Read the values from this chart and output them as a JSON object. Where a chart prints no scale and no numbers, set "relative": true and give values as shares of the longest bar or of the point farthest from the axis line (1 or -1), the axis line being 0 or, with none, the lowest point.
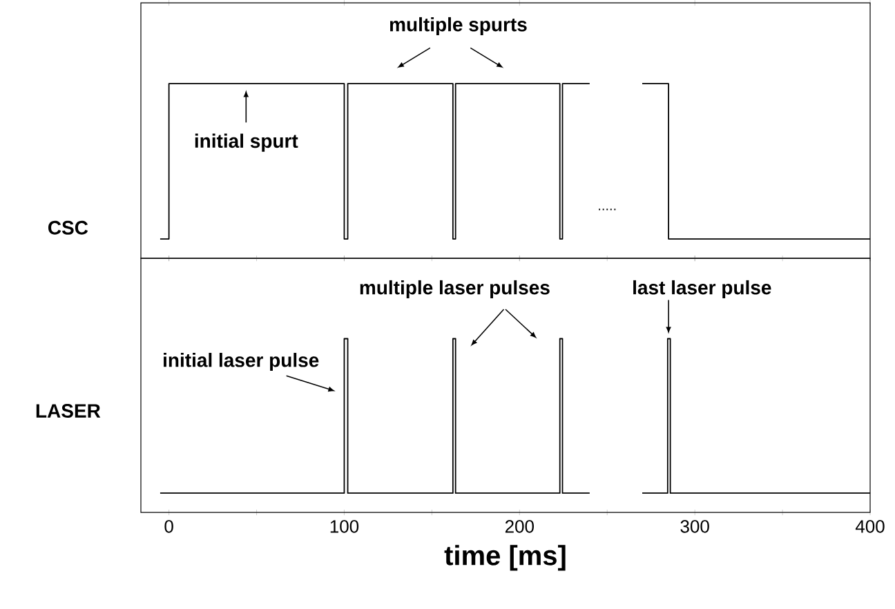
{
  "chart_data": [
    {
      "type": "line",
      "ylabel": "CSC",
      "relative": true,
      "color": "#000000",
      "xlim": [
        -16,
        400
      ],
      "xticks": [
        0,
        100,
        200,
        300,
        400
      ],
      "tick_labels": false,
      "x": [
        -5,
        0,
        0,
        100,
        100,
        102,
        102,
        162,
        162,
        163.5,
        163.5,
        223,
        223,
        224.5,
        224.5,
        240,
        255,
        270,
        285,
        285,
        400
      ],
      "values": [
        0,
        0,
        1,
        1,
        0,
        0,
        1,
        1,
        0,
        0,
        1,
        1,
        0,
        0,
        1,
        1,
        null,
        1,
        1,
        0,
        0
      ],
      "annotations": [
        {
          "text": "initial spurt",
          "x": 44,
          "y": 1
        },
        {
          "text": "multiple spurts",
          "x": 130,
          "y": 1
        },
        "....."
      ]
    },
    {
      "type": "line",
      "ylabel": "LASER",
      "xlabel": "time [ms]",
      "relative": true,
      "color": "#000000",
      "xlim": [
        -16,
        400
      ],
      "xticks": [
        0,
        {
          "value": 50,
          "label": null
        },
        100,
        {
          "value": 150,
          "label": null
        },
        200,
        {
          "value": 250,
          "label": null
        },
        300,
        {
          "value": 350,
          "label": null
        },
        400
      ],
      "tick_labels": "x",
      "x": [
        -5,
        100,
        100,
        102,
        102,
        162,
        162,
        163.5,
        163.5,
        223,
        223,
        224.5,
        224.5,
        240,
        255,
        270,
        284.5,
        284.5,
        286,
        286,
        400
      ],
      "values": [
        0,
        0,
        1,
        1,
        0,
        0,
        1,
        1,
        0,
        0,
        1,
        1,
        0,
        0,
        null,
        0,
        0,
        1,
        1,
        0,
        0
      ],
      "annotations": [
        "initial laser pulse",
        "multiple laser pulses",
        {
          "text": "last laser pulse",
          "x": 285,
          "y": 1.03
        }
      ]
    }
  ]
}
